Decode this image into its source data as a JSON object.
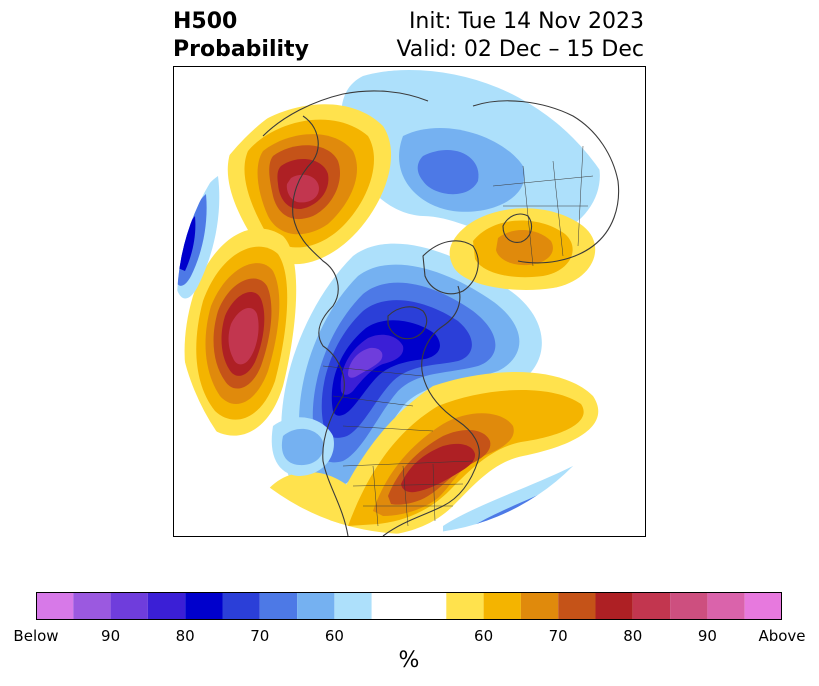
{
  "header": {
    "left_line1": "H500",
    "left_line2": "Probability",
    "right_line1": "Init: Tue 14 Nov 2023",
    "right_line2": "Valid: 02 Dec – 15 Dec"
  },
  "colorbar": {
    "unit": "%",
    "below_colors": [
      "#d779e8",
      "#9b59e0",
      "#6f3ddc",
      "#3b1fd6",
      "#0000cc",
      "#2b3fd8",
      "#4d79e6",
      "#75b1f1",
      "#ade0fb"
    ],
    "neutral_color": "#ffffff",
    "above_colors": [
      "#ffe24d",
      "#f4b400",
      "#e08a0c",
      "#c55318",
      "#ae2024",
      "#c2364f",
      "#cd4f7f",
      "#da63ab",
      "#e779de"
    ],
    "tick_labels": [
      "Below",
      "90",
      "80",
      "70",
      "60",
      "60",
      "70",
      "80",
      "90",
      "Above"
    ]
  },
  "map": {
    "projection_note": "polar stereographic North America",
    "anomalies": [
      {
        "region": "Alaska / Yukon",
        "sign": "above",
        "peak_level": 80
      },
      {
        "region": "North Pacific",
        "sign": "above",
        "peak_level": 90
      },
      {
        "region": "Bering Sea",
        "sign": "below",
        "peak_level": 70
      },
      {
        "region": "Gulf of Alaska / western Canada",
        "sign": "below",
        "peak_level": 90
      },
      {
        "region": "Arctic Ocean",
        "sign": "below",
        "peak_level": 60
      },
      {
        "region": "Scandinavia / NW Russia",
        "sign": "above",
        "peak_level": 70
      },
      {
        "region": "Central and eastern US",
        "sign": "above",
        "peak_level": 80
      },
      {
        "region": "North Atlantic",
        "sign": "above",
        "peak_level": 70
      },
      {
        "region": "Southwest US / Baja",
        "sign": "above",
        "peak_level": 60
      },
      {
        "region": "Gulf of Mexico / Florida",
        "sign": "below",
        "peak_level": 70
      }
    ]
  }
}
